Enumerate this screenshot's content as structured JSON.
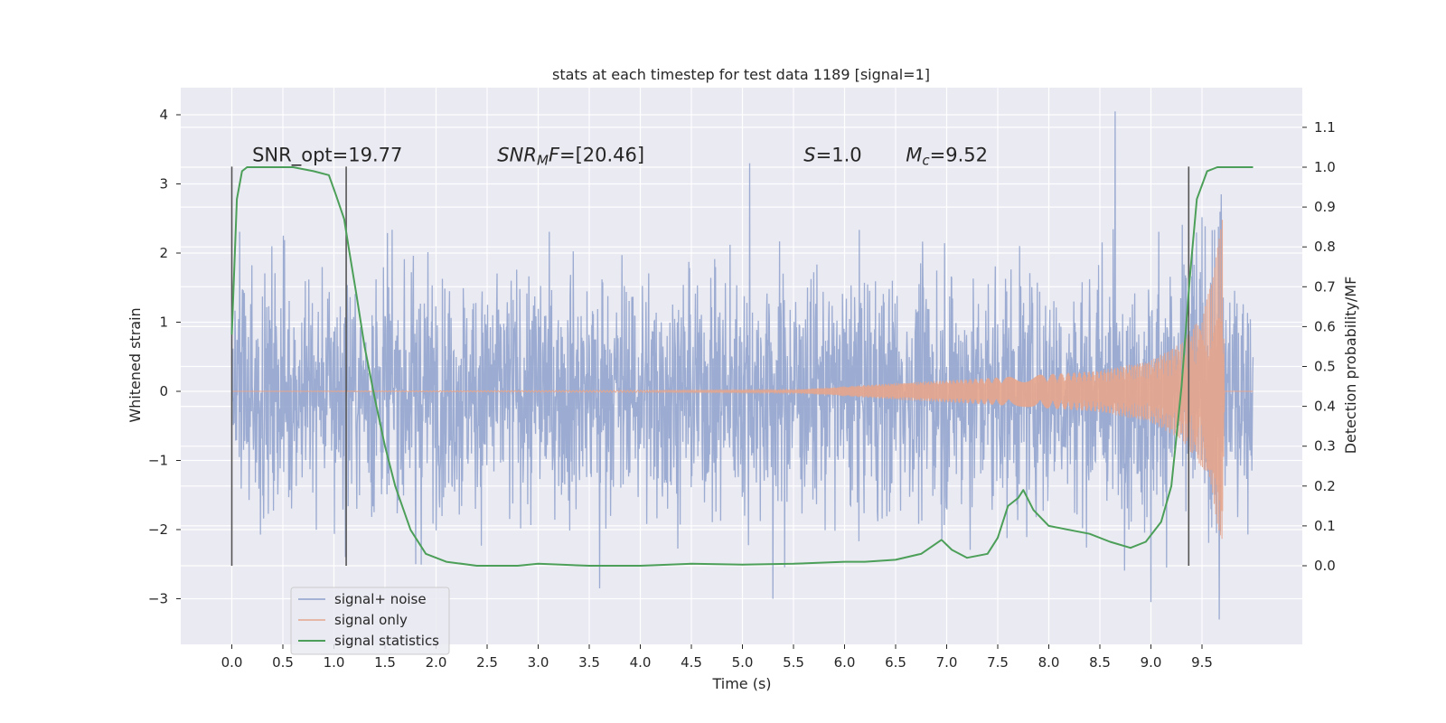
{
  "chart_data": {
    "type": "line",
    "title": "stats at each timestep for test data 1189 [signal=1]",
    "xlabel": "Time (s)",
    "ylabel": "Whitened strain",
    "y2label": "Detection probability/MF",
    "xlim": [
      -0.5,
      10.5
    ],
    "ylim": [
      -3.7,
      4.4
    ],
    "y2lim": [
      -0.2,
      1.18
    ],
    "x_ticks": [
      0.0,
      0.5,
      1.0,
      1.5,
      2.0,
      2.5,
      3.0,
      3.5,
      4.0,
      4.5,
      5.0,
      5.5,
      6.0,
      6.5,
      7.0,
      7.5,
      8.0,
      8.5,
      9.0,
      9.5
    ],
    "x_tick_labels": [
      "0.0",
      "0.5",
      "1.0",
      "1.5",
      "2.0",
      "2.5",
      "3.0",
      "3.5",
      "4.0",
      "4.5",
      "5.0",
      "5.5",
      "6.0",
      "6.5",
      "7.0",
      "7.5",
      "8.0",
      "8.5",
      "9.0",
      "9.5"
    ],
    "y_ticks": [
      4,
      3,
      2,
      1,
      0,
      -1,
      -2,
      -3
    ],
    "y_tick_labels": [
      "4",
      "3",
      "2",
      "1",
      "0",
      "−1",
      "−2",
      "−3"
    ],
    "y2_ticks": [
      1.1,
      1.0,
      0.9,
      0.8,
      0.7,
      0.6,
      0.5,
      0.4,
      0.3,
      0.2,
      0.1,
      0.0
    ],
    "y2_tick_labels": [
      "1.1",
      "1.0",
      "0.9",
      "0.8",
      "0.7",
      "0.6",
      "0.5",
      "0.4",
      "0.3",
      "0.2",
      "0.1",
      "0.0"
    ],
    "grid": true,
    "legend_position": "lower-left",
    "series": [
      {
        "name": "signal+ noise",
        "color": "#8da0cb",
        "axis": "left",
        "x_range": [
          0.0,
          10.0
        ],
        "typical_amplitude": 1.3,
        "extremes": [
          [
            8.65,
            4.05
          ],
          [
            5.07,
            3.3
          ],
          [
            9.69,
            2.85
          ],
          [
            9.0,
            -3.05
          ],
          [
            9.67,
            -3.3
          ],
          [
            5.3,
            -3.0
          ],
          [
            3.6,
            -2.85
          ],
          [
            1.8,
            -2.5
          ]
        ]
      },
      {
        "name": "signal only",
        "color": "#e5a58c",
        "axis": "left",
        "x_range": [
          0.0,
          9.72
        ],
        "envelope": [
          [
            0.0,
            0.0
          ],
          [
            5.5,
            0.02
          ],
          [
            6.5,
            0.12
          ],
          [
            7.5,
            0.2
          ],
          [
            8.5,
            0.3
          ],
          [
            9.0,
            0.45
          ],
          [
            9.3,
            0.7
          ],
          [
            9.5,
            1.1
          ],
          [
            9.6,
            1.6
          ],
          [
            9.65,
            2.1
          ],
          [
            9.7,
            2.5
          ],
          [
            9.72,
            0.0
          ]
        ]
      },
      {
        "name": "signal statistics",
        "color": "#4c9f58",
        "axis": "right",
        "x": [
          0.0,
          0.05,
          0.1,
          0.15,
          0.25,
          0.4,
          0.6,
          0.8,
          0.95,
          1.02,
          1.1,
          1.15,
          1.22,
          1.3,
          1.4,
          1.5,
          1.6,
          1.75,
          1.9,
          2.1,
          2.4,
          2.8,
          3.0,
          3.5,
          4.0,
          4.5,
          5.0,
          5.5,
          6.0,
          6.2,
          6.5,
          6.75,
          6.95,
          7.05,
          7.2,
          7.4,
          7.5,
          7.6,
          7.7,
          7.75,
          7.85,
          8.0,
          8.2,
          8.4,
          8.6,
          8.8,
          8.95,
          9.1,
          9.2,
          9.3,
          9.38,
          9.45,
          9.55,
          9.65,
          10.0
        ],
        "y": [
          0.58,
          0.92,
          0.99,
          1.0,
          1.0,
          1.0,
          1.0,
          0.99,
          0.98,
          0.93,
          0.87,
          0.79,
          0.68,
          0.55,
          0.42,
          0.3,
          0.2,
          0.09,
          0.03,
          0.01,
          0.0,
          0.0,
          0.005,
          0.0,
          0.0,
          0.005,
          0.003,
          0.005,
          0.01,
          0.01,
          0.015,
          0.03,
          0.065,
          0.04,
          0.02,
          0.03,
          0.07,
          0.15,
          0.17,
          0.19,
          0.14,
          0.1,
          0.09,
          0.08,
          0.06,
          0.045,
          0.06,
          0.11,
          0.2,
          0.45,
          0.72,
          0.92,
          0.99,
          1.0,
          1.0
        ]
      }
    ],
    "vlines": [
      0.0,
      1.12,
      9.37
    ],
    "vline_y2_range": [
      0.0,
      1.0
    ],
    "vline_y_range": [
      -2.5,
      3.25
    ],
    "annotations": [
      {
        "x": 0.2,
        "y2": 1.01,
        "text": "SNR_opt=19.77",
        "segments": [
          {
            "t": "SNR_opt=19.77"
          }
        ]
      },
      {
        "x": 2.6,
        "y2": 1.01,
        "text": "SNRMF=[20.46]",
        "segments": [
          {
            "t": "SNR",
            "i": true
          },
          {
            "t": "M",
            "i": true,
            "sub": true
          },
          {
            "t": "F",
            "i": true
          },
          {
            "t": "=[20.46]"
          }
        ]
      },
      {
        "x": 5.6,
        "y2": 1.01,
        "text": "S=1.0",
        "segments": [
          {
            "t": "S",
            "i": true
          },
          {
            "t": "=1.0"
          }
        ]
      },
      {
        "x": 6.6,
        "y2": 1.01,
        "text": "Mc=9.52",
        "segments": [
          {
            "t": "M",
            "i": true
          },
          {
            "t": "c",
            "i": true,
            "sub": true
          },
          {
            "t": "=9.52"
          }
        ]
      }
    ],
    "legend": [
      {
        "label": "signal+ noise",
        "color": "#8da0cb"
      },
      {
        "label": "signal only",
        "color": "#e5a58c"
      },
      {
        "label": "signal statistics",
        "color": "#4c9f58"
      }
    ]
  }
}
